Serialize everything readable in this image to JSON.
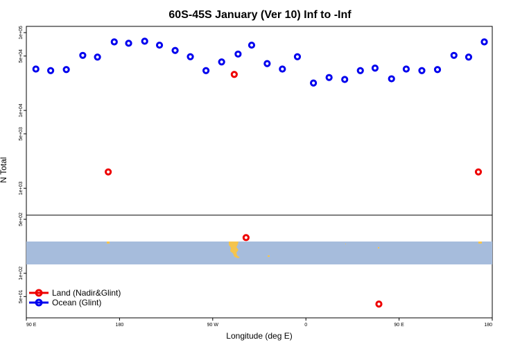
{
  "chart_data": {
    "type": "scatter",
    "title": "60S-45S January (Ver 10)   Inf to -Inf",
    "xlabel": "Longitude (deg E)",
    "ylabel": "N Total",
    "x_ticks": [
      {
        "value": 90,
        "label": "90 E"
      },
      {
        "value": 180,
        "label": "180"
      },
      {
        "value": 270,
        "label": "90 W"
      },
      {
        "value": 360,
        "label": "0"
      },
      {
        "value": 450,
        "label": "90 E"
      },
      {
        "value": 540,
        "label": "180"
      }
    ],
    "xlim": [
      90,
      540
    ],
    "upper_panel": {
      "ylim": [
        500,
        100000
      ],
      "y_ticks": [
        {
          "value": 500,
          "label": "5e+02"
        },
        {
          "value": 1000,
          "label": "1e+03"
        },
        {
          "value": 5000,
          "label": "5e+03"
        },
        {
          "value": 10000,
          "label": "1e+04"
        },
        {
          "value": 50000,
          "label": "5e+04"
        },
        {
          "value": 100000,
          "label": "1e+05"
        }
      ]
    },
    "lower_panel": {
      "ylim": [
        30,
        500
      ],
      "y_ticks": [
        {
          "value": 50,
          "label": "5e+01"
        },
        {
          "value": 100,
          "label": "1e+02"
        },
        {
          "value": 500,
          "label": "5e+02"
        }
      ]
    },
    "series": [
      {
        "name": "Ocean (Glint)",
        "color": "#0000ee",
        "points": [
          {
            "x": 99.2,
            "y": 34000
          },
          {
            "x": 113.5,
            "y": 32500
          },
          {
            "x": 128.6,
            "y": 33500
          },
          {
            "x": 144.5,
            "y": 51000
          },
          {
            "x": 158.7,
            "y": 48500
          },
          {
            "x": 174.9,
            "y": 76000
          },
          {
            "x": 188.8,
            "y": 73000
          },
          {
            "x": 204.3,
            "y": 77500
          },
          {
            "x": 218.6,
            "y": 69000
          },
          {
            "x": 233.7,
            "y": 59000
          },
          {
            "x": 248.4,
            "y": 49000
          },
          {
            "x": 263.5,
            "y": 32500
          },
          {
            "x": 278.6,
            "y": 42000
          },
          {
            "x": 294.5,
            "y": 53000
          },
          {
            "x": 307.6,
            "y": 69000
          },
          {
            "x": 322.6,
            "y": 40000
          },
          {
            "x": 337.3,
            "y": 34000
          },
          {
            "x": 351.8,
            "y": 49000
          },
          {
            "x": 367.3,
            "y": 22500
          },
          {
            "x": 382.4,
            "y": 26500
          },
          {
            "x": 397.5,
            "y": 25000
          },
          {
            "x": 412.6,
            "y": 32500
          },
          {
            "x": 426.8,
            "y": 35000
          },
          {
            "x": 442.7,
            "y": 25500
          },
          {
            "x": 456.9,
            "y": 34000
          },
          {
            "x": 472.0,
            "y": 32500
          },
          {
            "x": 487.1,
            "y": 33500
          },
          {
            "x": 503.0,
            "y": 51000
          },
          {
            "x": 517.2,
            "y": 48500
          },
          {
            "x": 532.3,
            "y": 76000
          }
        ]
      },
      {
        "name": "Land (Nadir&Glint)",
        "color": "#ee0000",
        "points": [
          {
            "x": 169.1,
            "y": 1620
          },
          {
            "x": 290.8,
            "y": 29000
          },
          {
            "x": 302.2,
            "y": 290
          },
          {
            "x": 430.5,
            "y": 40
          },
          {
            "x": 526.6,
            "y": 1620
          }
        ]
      }
    ],
    "legend": {
      "position": "bottom-left",
      "entries": [
        {
          "label": "Land (Nadir&Glint)",
          "color": "#ee0000"
        },
        {
          "label": "Ocean (Glint)",
          "color": "#0000ee"
        }
      ]
    },
    "map_strip": {
      "lat_range": "60S-45S",
      "ocean_color": "#a6bcdc",
      "land_color": "#f5c44d"
    }
  }
}
